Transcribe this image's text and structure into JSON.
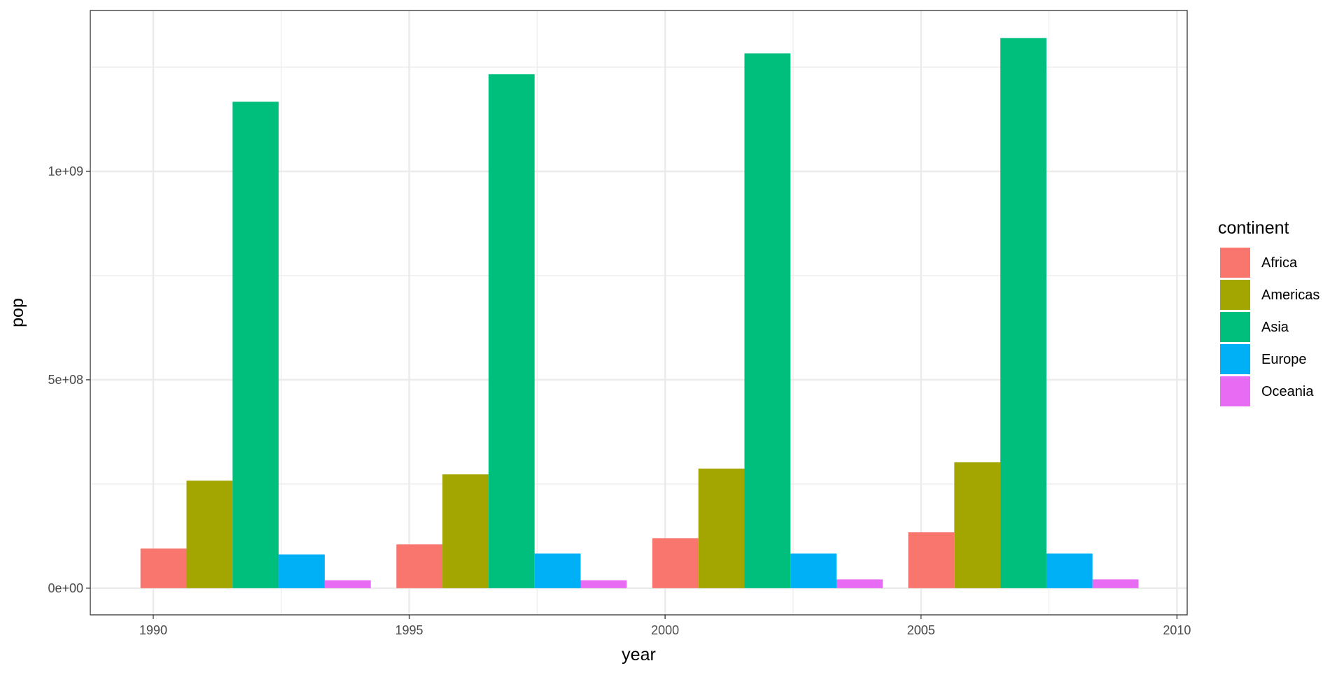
{
  "chart_data": {
    "type": "bar",
    "position": "dodge",
    "xlabel": "year",
    "ylabel": "pop",
    "x": [
      1992,
      1997,
      2002,
      2007
    ],
    "xlim": [
      1988.77,
      2010.2
    ],
    "ylim": [
      -64000000,
      1386000000
    ],
    "xticks": [
      1990,
      1995,
      2000,
      2005,
      2010
    ],
    "xtick_labels": [
      "1990",
      "1995",
      "2000",
      "2005",
      "2010"
    ],
    "yticks": [
      0,
      500000000,
      1000000000
    ],
    "ytick_labels": [
      "0e+00",
      "5e+08",
      "1e+09"
    ],
    "grid": true,
    "legend": {
      "title": "continent",
      "placement": "right"
    },
    "series": [
      {
        "name": "Africa",
        "color": "#F8766D",
        "values": [
          95000000,
          105000000,
          120000000,
          134000000
        ]
      },
      {
        "name": "Americas",
        "color": "#A3A500",
        "values": [
          258000000,
          273000000,
          287000000,
          302000000
        ]
      },
      {
        "name": "Asia",
        "color": "#00BF7D",
        "values": [
          1167000000,
          1233000000,
          1283000000,
          1320000000
        ]
      },
      {
        "name": "Europe",
        "color": "#00B0F6",
        "values": [
          81000000,
          83000000,
          83000000,
          83000000
        ]
      },
      {
        "name": "Oceania",
        "color": "#E76BF3",
        "values": [
          19000000,
          19000000,
          21000000,
          21000000
        ]
      }
    ]
  }
}
